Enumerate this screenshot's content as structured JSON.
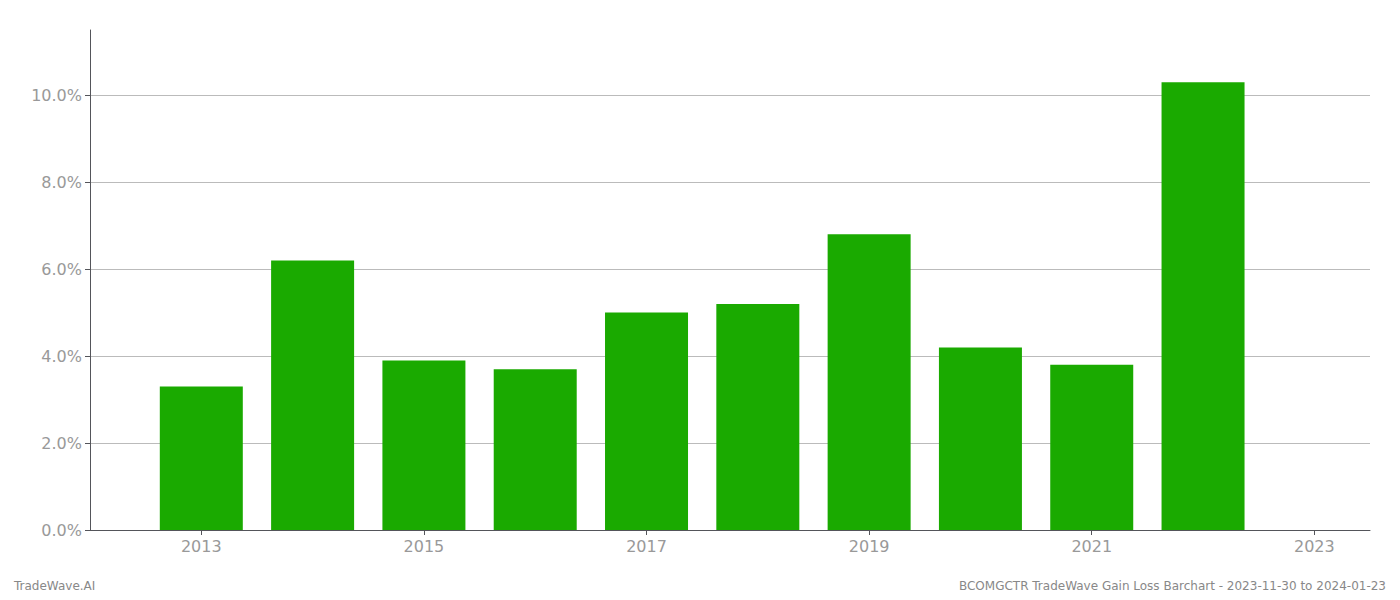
{
  "chart_data": {
    "type": "bar",
    "x": [
      2013,
      2014,
      2015,
      2016,
      2017,
      2018,
      2019,
      2020,
      2021,
      2022
    ],
    "values": [
      0.033,
      0.062,
      0.039,
      0.037,
      0.05,
      0.052,
      0.068,
      0.042,
      0.038,
      0.103
    ],
    "color": "#1aaa00",
    "xlim": [
      2012.0,
      2023.5
    ],
    "xticks": [
      2013,
      2015,
      2017,
      2019,
      2021,
      2023
    ],
    "ylim": [
      0,
      0.115
    ],
    "yticks": [
      {
        "value": 0.0,
        "label": "0.0%"
      },
      {
        "value": 0.02,
        "label": "2.0%"
      },
      {
        "value": 0.04,
        "label": "4.0%"
      },
      {
        "value": 0.06,
        "label": "6.0%"
      },
      {
        "value": 0.08,
        "label": "8.0%"
      },
      {
        "value": 0.1,
        "label": "10.0%"
      }
    ],
    "grid": true,
    "annotations": [
      "TradeWave.AI",
      "BCOMGCTR TradeWave Gain Loss Barchart - 2023-11-30 to 2024-01-23"
    ]
  }
}
